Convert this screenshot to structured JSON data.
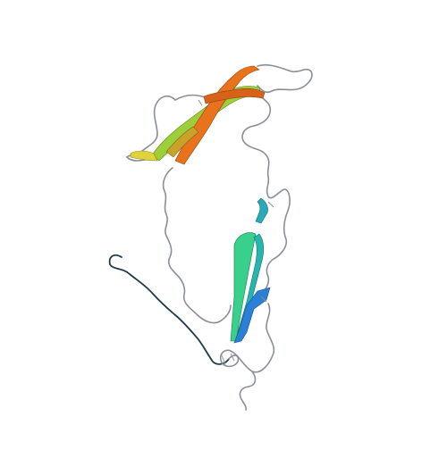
{
  "image": {
    "subject": "protein-ribbon-structure",
    "background": "#ffffff"
  },
  "colors": {
    "coil": "#8a8f96",
    "coil_dark": "#1f3a4a",
    "strand_blue": "#2b7fd6",
    "strand_cyan": "#27b5b0",
    "strand_green": "#38d08a",
    "strand_lime": "#9ccf3a",
    "strand_yellow": "#e0d23a",
    "strand_orange": "#e8731c",
    "strand_dark_orange": "#d8621a"
  }
}
